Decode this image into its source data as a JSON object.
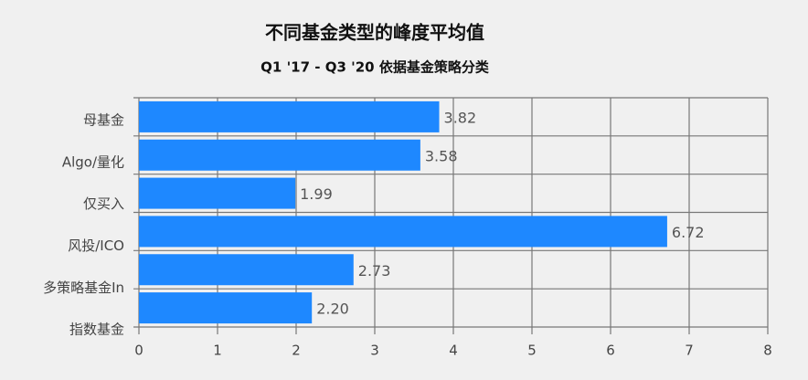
{
  "chart_data": {
    "type": "bar",
    "orientation": "horizontal",
    "title": "不同基金类型的峰度平均值",
    "subtitle": "Q1 '17 - Q3 '20 依据基金策略分类",
    "categories": [
      "母基金",
      "Algo/量化",
      "仅买入",
      "风投/ICO",
      "多策略基金In",
      "指数基金"
    ],
    "values": [
      3.82,
      3.58,
      1.99,
      6.72,
      2.73,
      2.2
    ],
    "value_labels": [
      "3.82",
      "3.58",
      "1.99",
      "6.72",
      "2.73",
      "2.20"
    ],
    "color": "#1e88ff",
    "xlim": [
      0,
      8
    ],
    "xticks": [
      0,
      1,
      2,
      3,
      4,
      5,
      6,
      7,
      8
    ],
    "grid": true
  }
}
